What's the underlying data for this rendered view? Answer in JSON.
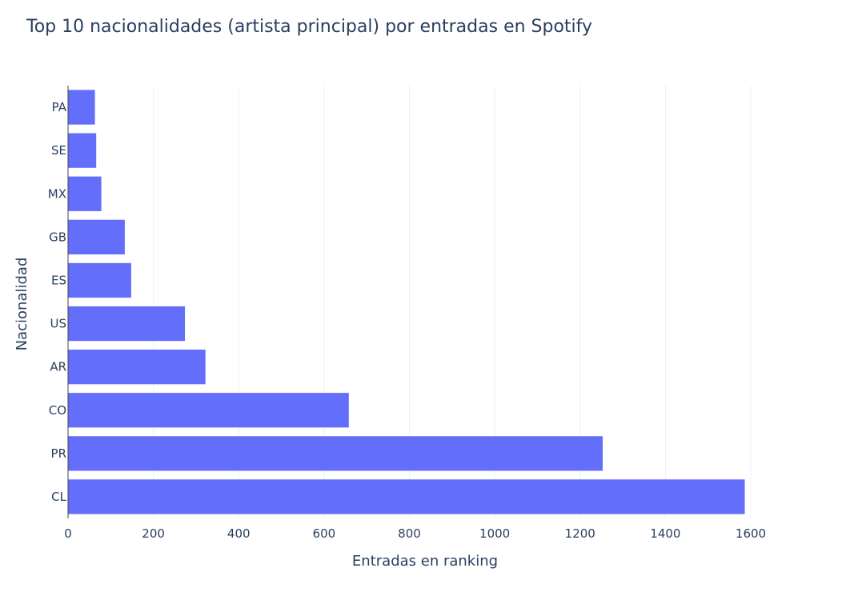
{
  "chart_data": {
    "type": "bar",
    "orientation": "horizontal",
    "title": "Top 10 nacionalidades (artista principal) por entradas en Spotify",
    "xlabel": "Entradas en ranking",
    "ylabel": "Nacionalidad",
    "categories": [
      "PA",
      "SE",
      "MX",
      "GB",
      "ES",
      "US",
      "AR",
      "CO",
      "PR",
      "CL"
    ],
    "values": [
      63,
      66,
      78,
      133,
      148,
      274,
      322,
      658,
      1253,
      1586
    ],
    "xlim": [
      0,
      1600
    ],
    "xticks": [
      0,
      200,
      400,
      600,
      800,
      1000,
      1200,
      1400,
      1600
    ],
    "grid": true,
    "legend": "none",
    "bar_color": "#636efa"
  }
}
